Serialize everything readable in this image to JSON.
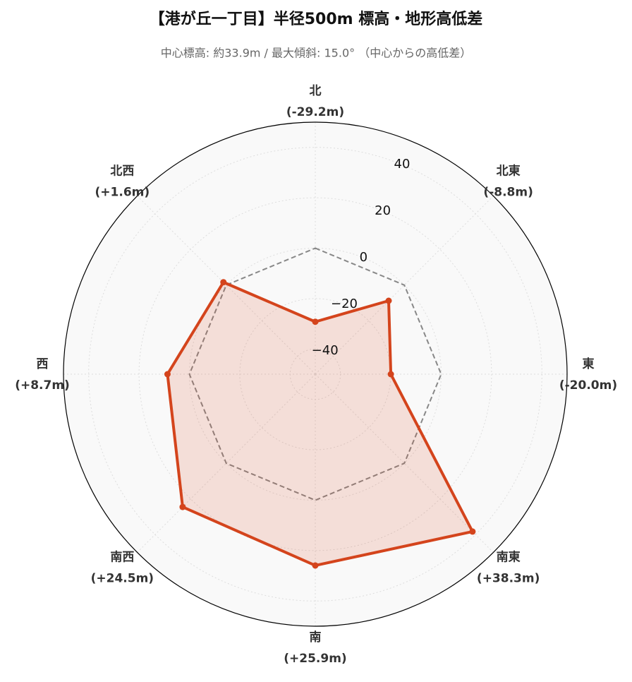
{
  "chart_data": {
    "type": "radar",
    "title": "【港が丘一丁目】半径500m 標高・地形高低差",
    "subtitle": "中心標高: 約33.9m / 最大傾斜: 15.0° （中心からの高低差）",
    "categories": [
      "北",
      "北東",
      "東",
      "南東",
      "南",
      "南西",
      "西",
      "北西"
    ],
    "series": [
      {
        "color": "#d4441c",
        "values": [
          -29.2,
          -8.8,
          -20.0,
          38.3,
          25.9,
          24.5,
          8.7,
          1.6
        ],
        "value_labels": [
          "(-29.2m)",
          "(-8.8m)",
          "(-20.0m)",
          "(+38.3m)",
          "(+25.9m)",
          "(+24.5m)",
          "(+8.7m)",
          "(+1.6m)"
        ]
      }
    ],
    "ylim": [
      -50,
      50
    ],
    "yticks": [
      {
        "value": -40,
        "label": "−40"
      },
      {
        "value": -20,
        "label": "−20"
      },
      0,
      20,
      40
    ],
    "zero_line": true,
    "grid": true
  }
}
